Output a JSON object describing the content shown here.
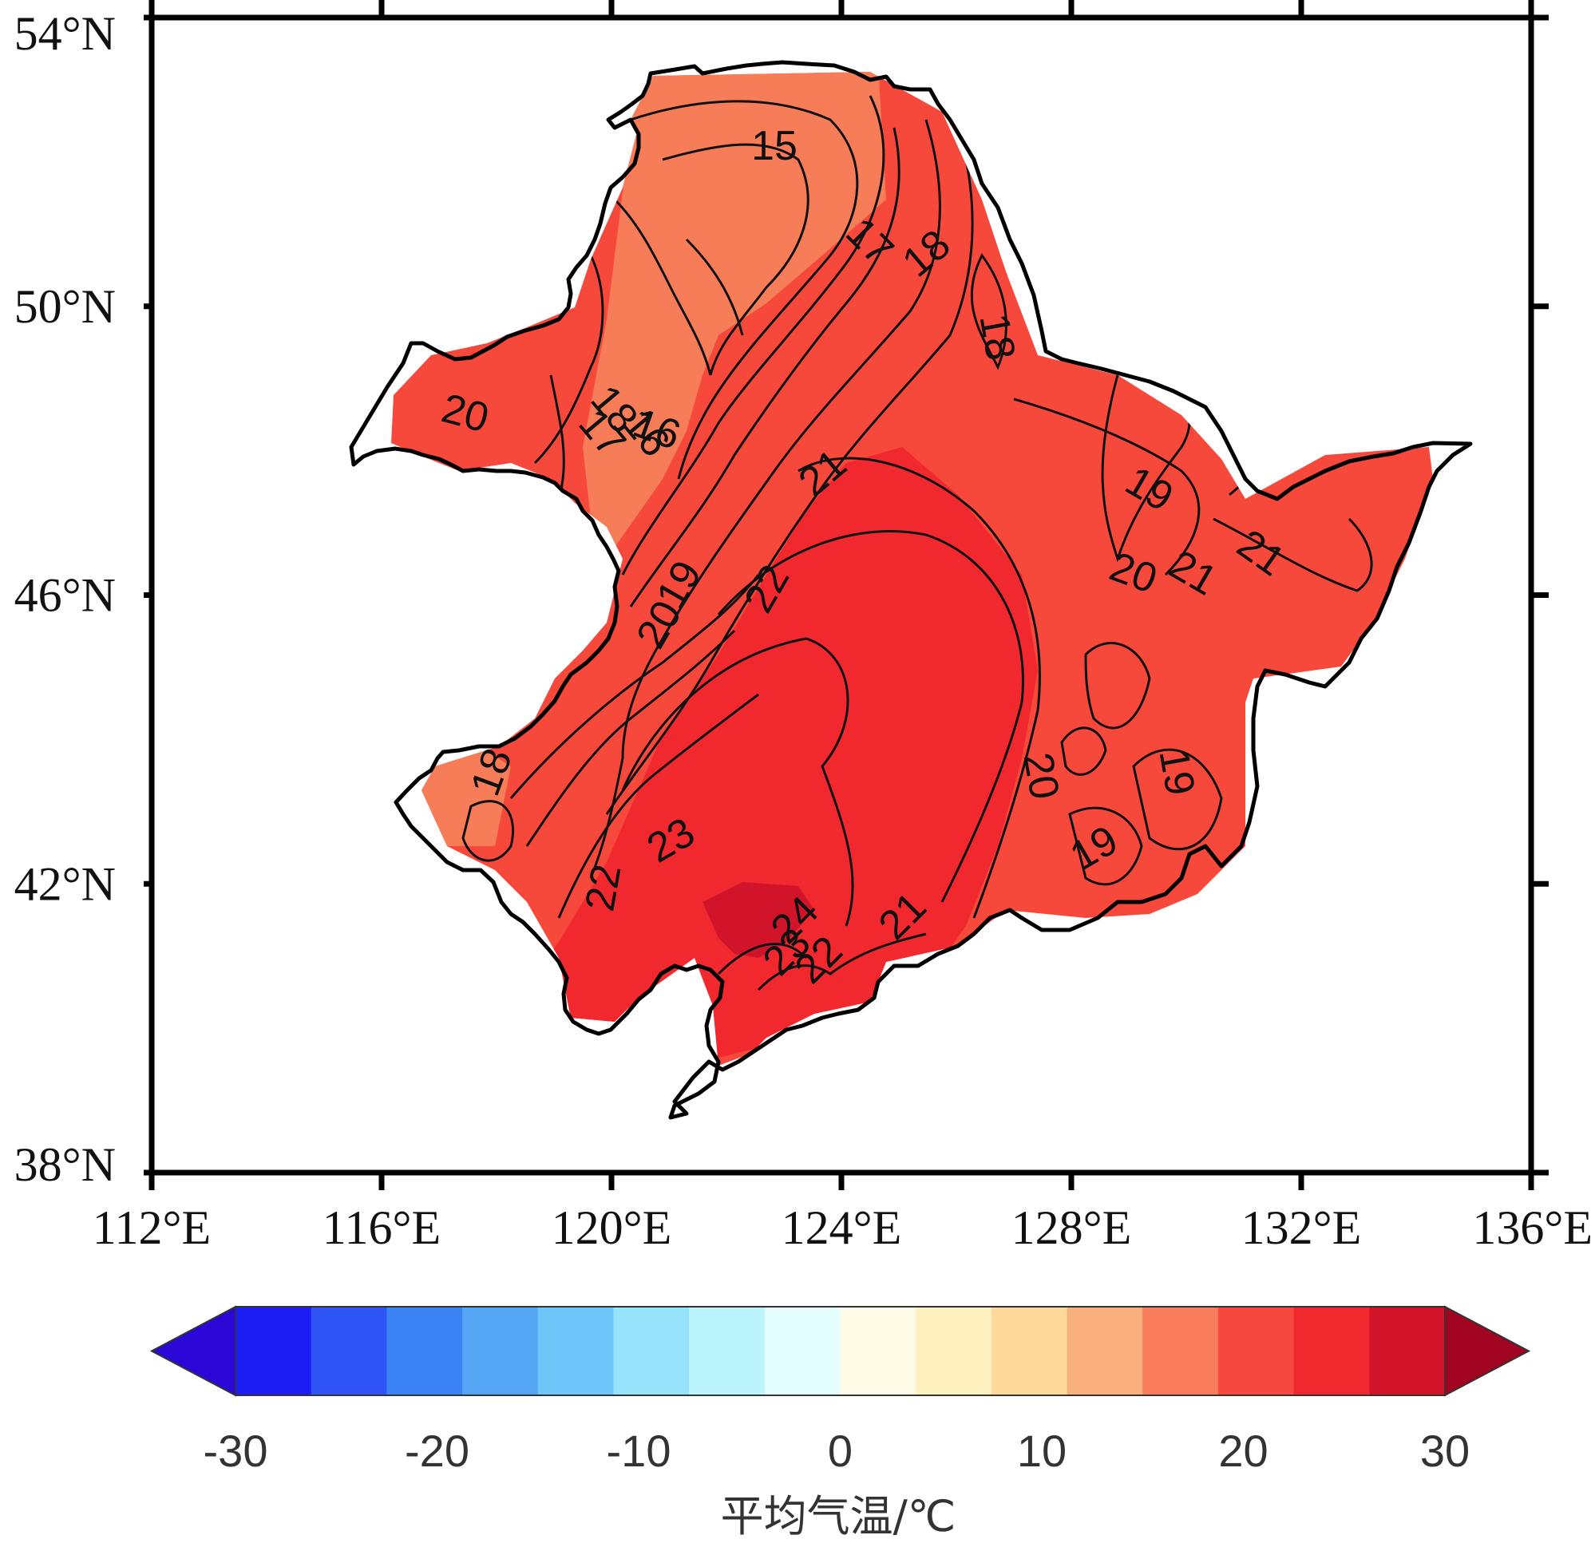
{
  "map": {
    "lat_labels": [
      "54°N",
      "50°N",
      "46°N",
      "42°N",
      "38°N"
    ],
    "lon_labels": [
      "112°E",
      "116°E",
      "120°E",
      "124°E",
      "128°E",
      "132°E",
      "136°E"
    ],
    "extent": {
      "lon": [
        112,
        136
      ],
      "lat": [
        38,
        54
      ]
    },
    "contour_labels": [
      {
        "text": "20",
        "rot": 15,
        "k": "a"
      },
      {
        "text": "16",
        "rot": 20,
        "k": "b"
      },
      {
        "text": "15",
        "rot": 0,
        "k": "c"
      },
      {
        "text": "17",
        "rot": 45,
        "k": "d"
      },
      {
        "text": "18",
        "rot": -40,
        "k": "e"
      },
      {
        "text": "18",
        "rot": 80,
        "k": "f"
      },
      {
        "text": "18",
        "rot": 50,
        "k": "g"
      },
      {
        "text": "17",
        "rot": 50,
        "k": "h"
      },
      {
        "text": "16",
        "rot": 50,
        "k": "i"
      },
      {
        "text": "21",
        "rot": -40,
        "k": "j"
      },
      {
        "text": "19",
        "rot": -60,
        "k": "k"
      },
      {
        "text": "20",
        "rot": -60,
        "k": "l"
      },
      {
        "text": "22",
        "rot": -60,
        "k": "m"
      },
      {
        "text": "19",
        "rot": 30,
        "k": "n"
      },
      {
        "text": "20",
        "rot": 20,
        "k": "o"
      },
      {
        "text": "21",
        "rot": 30,
        "k": "p"
      },
      {
        "text": "21",
        "rot": 35,
        "k": "q"
      },
      {
        "text": "18",
        "rot": -70,
        "k": "r"
      },
      {
        "text": "23",
        "rot": -30,
        "k": "s"
      },
      {
        "text": "22",
        "rot": -80,
        "k": "t"
      },
      {
        "text": "24",
        "rot": -45,
        "k": "u"
      },
      {
        "text": "23",
        "rot": -45,
        "k": "v"
      },
      {
        "text": "22",
        "rot": -45,
        "k": "w"
      },
      {
        "text": "21",
        "rot": -45,
        "k": "x"
      },
      {
        "text": "20",
        "rot": 80,
        "k": "y"
      },
      {
        "text": "19",
        "rot": -30,
        "k": "z"
      },
      {
        "text": "19",
        "rot": 80,
        "k": "aa"
      }
    ]
  },
  "colorbar": {
    "ticks": [
      "-30",
      "-20",
      "-10",
      "0",
      "10",
      "20",
      "30"
    ],
    "title": "平均气温/℃",
    "colors": [
      "#2a07d6",
      "#1c1cf5",
      "#2e54f6",
      "#3b82f5",
      "#54a6f5",
      "#6dc6f7",
      "#97e3fb",
      "#bbf4fb",
      "#e4fdfd",
      "#fefbe6",
      "#fef1bf",
      "#fdd89a",
      "#f8b07f",
      "#f97c5c",
      "#f7483f",
      "#f1292f",
      "#d2142b",
      "#a00421"
    ],
    "range": [
      -30,
      30
    ]
  },
  "fill_colors": {
    "cool": "#f77c58",
    "mid": "#f6483b",
    "warm": "#f1292f",
    "hot": "#d2142b"
  }
}
